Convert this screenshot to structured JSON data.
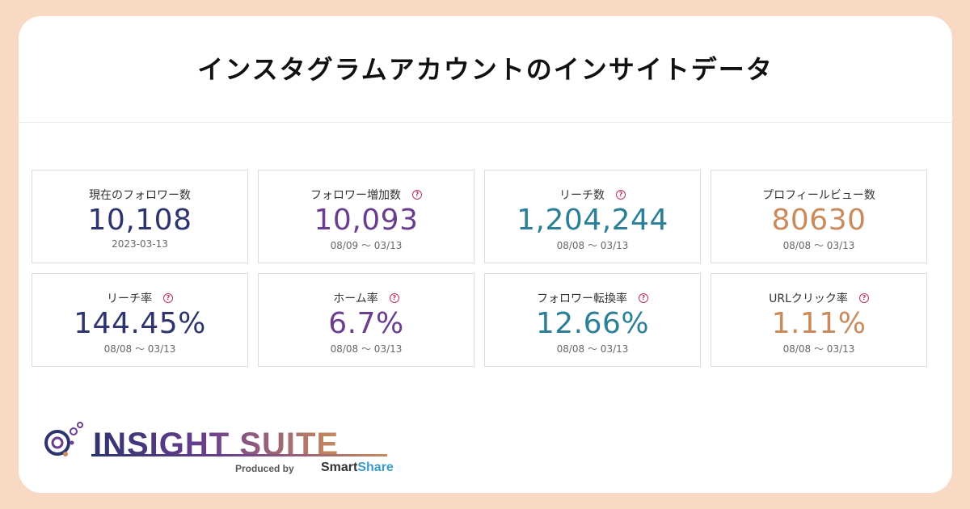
{
  "title": "インスタグラムアカウントのインサイトデータ",
  "stats": [
    {
      "label": "現在のフォロワー数",
      "value": "10,108",
      "date": "2023-03-13",
      "help": false,
      "color": "#2e3470"
    },
    {
      "label": "フォロワー増加数",
      "value": "10,093",
      "date": "08/09 〜 03/13",
      "help": true,
      "color": "#6a3d8f"
    },
    {
      "label": "リーチ数",
      "value": "1,204,244",
      "date": "08/08 〜 03/13",
      "help": true,
      "color": "#2c7f98"
    },
    {
      "label": "プロフィールビュー数",
      "value": "80630",
      "date": "08/08 〜 03/13",
      "help": false,
      "color": "#c98a5c"
    },
    {
      "label": "リーチ率",
      "value": "144.45%",
      "date": "08/08 〜 03/13",
      "help": true,
      "color": "#2e3470"
    },
    {
      "label": "ホーム率",
      "value": "6.7%",
      "date": "08/08 〜 03/13",
      "help": true,
      "color": "#6a3d8f"
    },
    {
      "label": "フォロワー転換率",
      "value": "12.66%",
      "date": "08/08 〜 03/13",
      "help": true,
      "color": "#2c7f98"
    },
    {
      "label": "URLクリック率",
      "value": "1.11%",
      "date": "08/08 〜 03/13",
      "help": true,
      "color": "#c98a5c"
    }
  ],
  "help_glyph": "?",
  "logo": {
    "name": "INSIGHT SUITE",
    "produced_by": "Produced by",
    "brand_a": "Smart",
    "brand_b": "Share"
  }
}
